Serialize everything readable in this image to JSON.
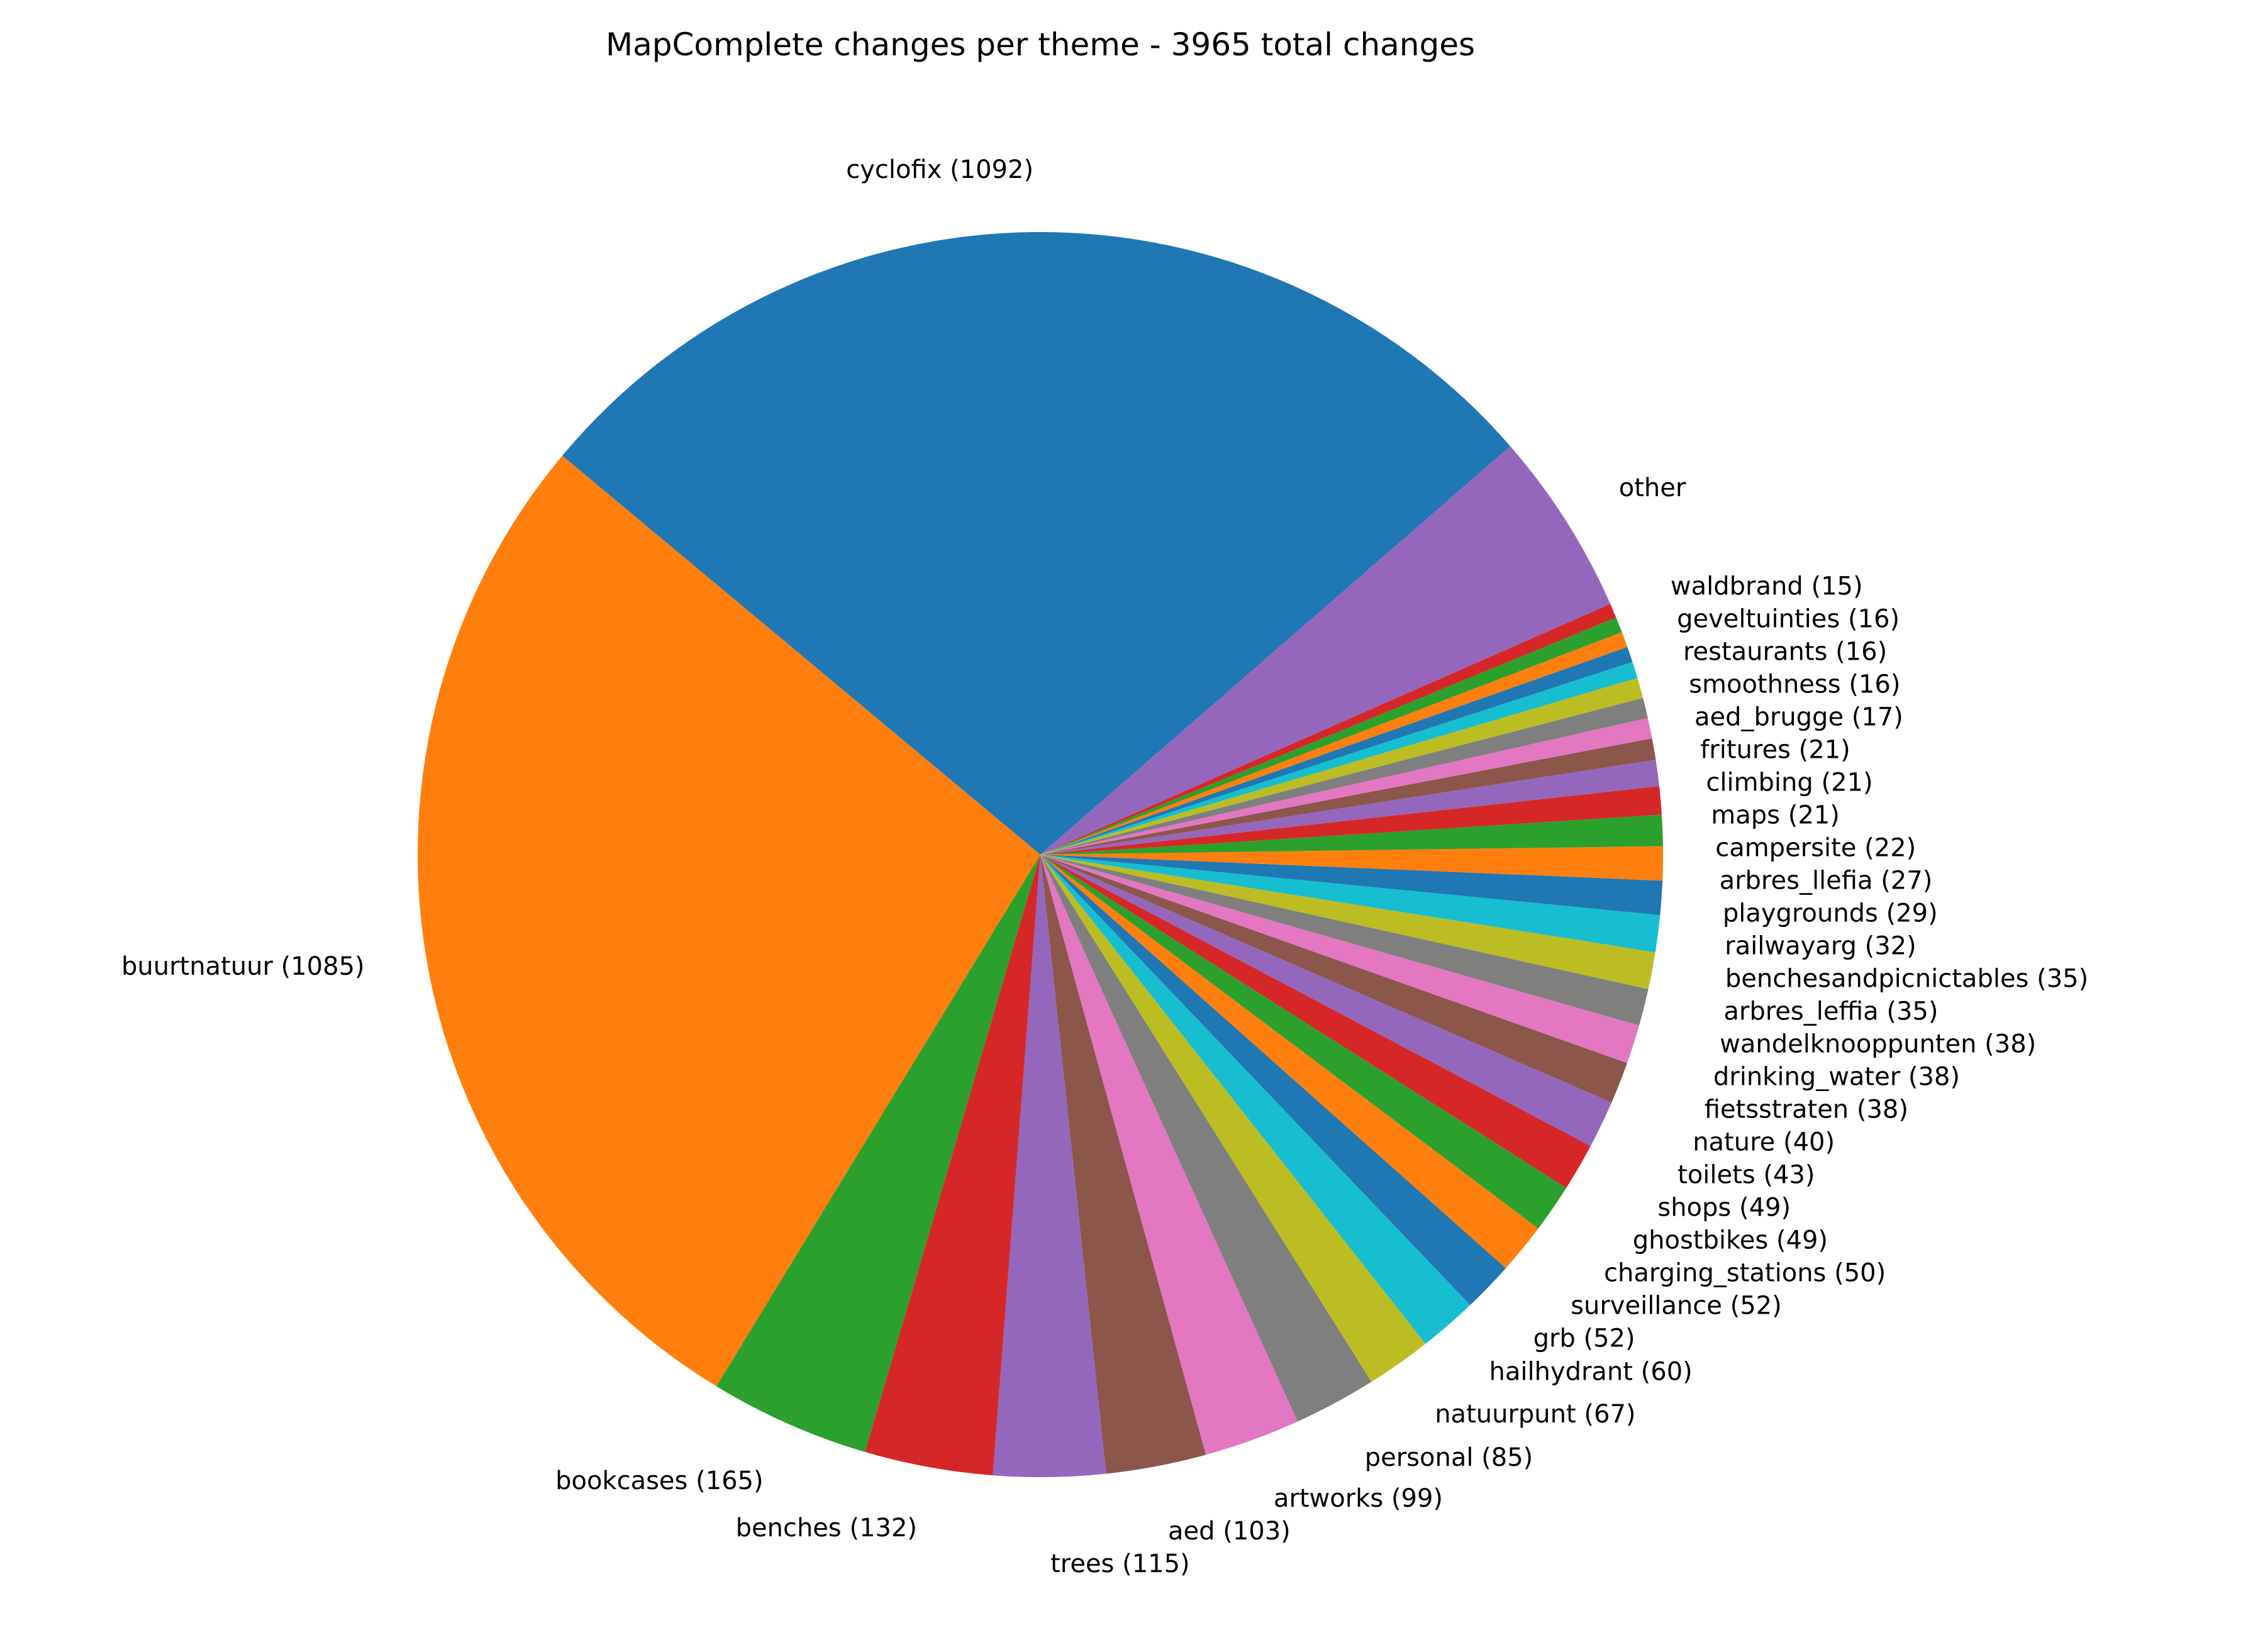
{
  "chart_data": {
    "type": "pie",
    "title": "MapComplete changes per theme - 3965 total changes",
    "start_angle_deg": 41,
    "direction": "counterclockwise",
    "slices": [
      {
        "name": "cyclofix",
        "value": 1092,
        "label": "cyclofix (1092)",
        "color": "#1f77b4"
      },
      {
        "name": "buurtnatuur",
        "value": 1085,
        "label": "buurtnatuur (1085)",
        "color": "#ff7f0e"
      },
      {
        "name": "bookcases",
        "value": 165,
        "label": "bookcases (165)",
        "color": "#2ca02c"
      },
      {
        "name": "benches",
        "value": 132,
        "label": "benches (132)",
        "color": "#d62728"
      },
      {
        "name": "trees",
        "value": 115,
        "label": "trees (115)",
        "color": "#9467bd"
      },
      {
        "name": "aed",
        "value": 103,
        "label": "aed (103)",
        "color": "#8c564b"
      },
      {
        "name": "artworks",
        "value": 99,
        "label": "artworks (99)",
        "color": "#e377c2"
      },
      {
        "name": "personal",
        "value": 85,
        "label": "personal (85)",
        "color": "#7f7f7f"
      },
      {
        "name": "natuurpunt",
        "value": 67,
        "label": "natuurpunt (67)",
        "color": "#bcbd22"
      },
      {
        "name": "hailhydrant",
        "value": 60,
        "label": "hailhydrant (60)",
        "color": "#17becf"
      },
      {
        "name": "grb",
        "value": 52,
        "label": "grb (52)",
        "color": "#1f77b4"
      },
      {
        "name": "surveillance",
        "value": 52,
        "label": "surveillance (52)",
        "color": "#ff7f0e"
      },
      {
        "name": "charging_stations",
        "value": 50,
        "label": "charging_stations (50)",
        "color": "#2ca02c"
      },
      {
        "name": "ghostbikes",
        "value": 49,
        "label": "ghostbikes (49)",
        "color": "#d62728"
      },
      {
        "name": "shops",
        "value": 49,
        "label": "shops (49)",
        "color": "#9467bd"
      },
      {
        "name": "toilets",
        "value": 43,
        "label": "toilets (43)",
        "color": "#8c564b"
      },
      {
        "name": "nature",
        "value": 40,
        "label": "nature (40)",
        "color": "#e377c2"
      },
      {
        "name": "fietsstraten",
        "value": 38,
        "label": "fietsstraten (38)",
        "color": "#7f7f7f"
      },
      {
        "name": "drinking_water",
        "value": 38,
        "label": "drinking_water (38)",
        "color": "#bcbd22"
      },
      {
        "name": "wandelknooppunten",
        "value": 38,
        "label": "wandelknooppunten (38)",
        "color": "#17becf"
      },
      {
        "name": "arbres_leffia",
        "value": 35,
        "label": "arbres_leffia (35)",
        "color": "#1f77b4"
      },
      {
        "name": "benchesandpicnictables",
        "value": 35,
        "label": "benchesandpicnictables (35)",
        "color": "#ff7f0e"
      },
      {
        "name": "railwayarg",
        "value": 32,
        "label": "railwayarg (32)",
        "color": "#2ca02c"
      },
      {
        "name": "playgrounds",
        "value": 29,
        "label": "playgrounds (29)",
        "color": "#d62728"
      },
      {
        "name": "arbres_llefia",
        "value": 27,
        "label": "arbres_llefia (27)",
        "color": "#9467bd"
      },
      {
        "name": "campersite",
        "value": 22,
        "label": "campersite (22)",
        "color": "#8c564b"
      },
      {
        "name": "maps",
        "value": 21,
        "label": "maps (21)",
        "color": "#e377c2"
      },
      {
        "name": "climbing",
        "value": 21,
        "label": "climbing (21)",
        "color": "#7f7f7f"
      },
      {
        "name": "fritures",
        "value": 21,
        "label": "fritures (21)",
        "color": "#bcbd22"
      },
      {
        "name": "aed_brugge",
        "value": 17,
        "label": "aed_brugge (17)",
        "color": "#17becf"
      },
      {
        "name": "smoothness",
        "value": 16,
        "label": "smoothness (16)",
        "color": "#1f77b4"
      },
      {
        "name": "restaurants",
        "value": 16,
        "label": "restaurants (16)",
        "color": "#ff7f0e"
      },
      {
        "name": "geveltuinties",
        "value": 16,
        "label": "geveltuinties (16)",
        "color": "#2ca02c"
      },
      {
        "name": "waldbrand",
        "value": 15,
        "label": "waldbrand (15)",
        "color": "#d62728"
      },
      {
        "name": "other",
        "value": 190,
        "label": "other",
        "color": "#9467bd"
      }
    ]
  }
}
